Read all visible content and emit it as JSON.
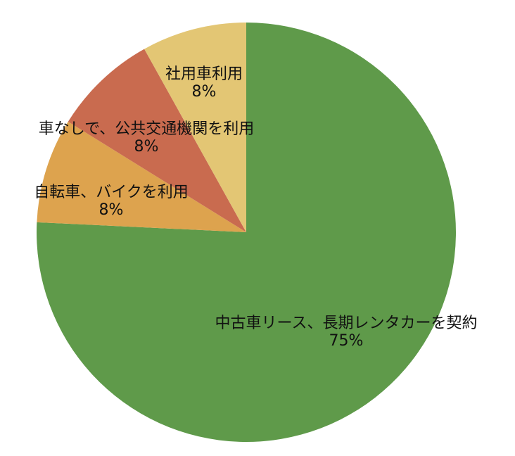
{
  "chart_data": {
    "type": "pie",
    "start_angle_deg": 0,
    "direction": "clockwise",
    "slices": [
      {
        "label": "中古車リース、長期レンタカーを契約",
        "value": 75,
        "value_label": "75%",
        "color": "#5f9a4a"
      },
      {
        "label": "自転車、バイクを利用",
        "value": 8,
        "value_label": "8%",
        "color": "#dda34e"
      },
      {
        "label": "車なしで、公共交通機関を利用",
        "value": 8,
        "value_label": "8%",
        "color": "#c96b4f"
      },
      {
        "label": "社用車利用",
        "value": 8,
        "value_label": "8%",
        "color": "#e3c674"
      }
    ]
  }
}
